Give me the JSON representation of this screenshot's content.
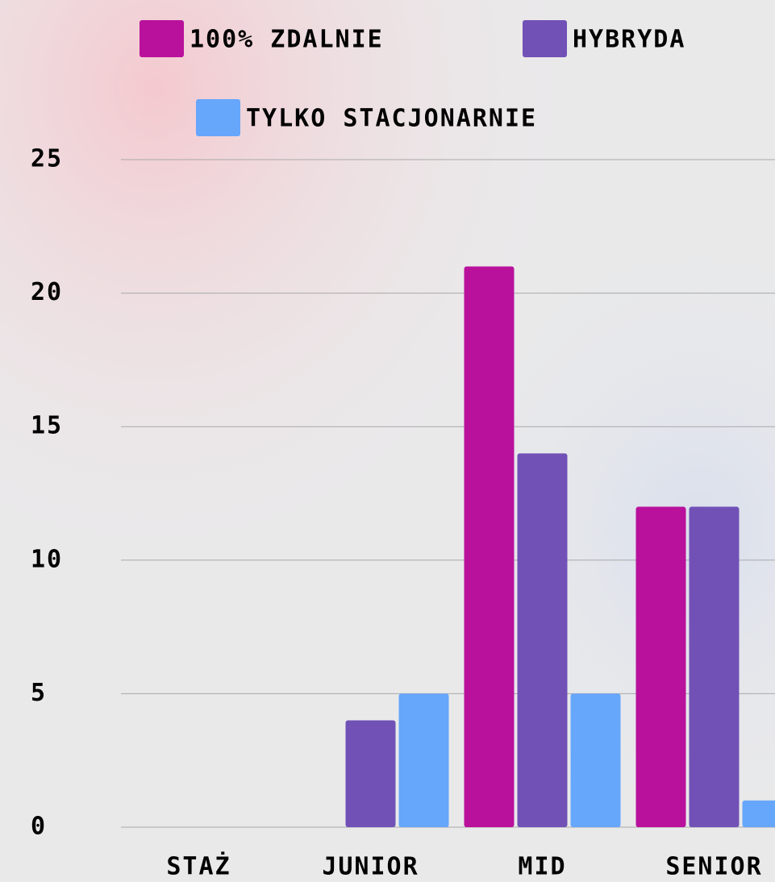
{
  "chart_data": {
    "type": "bar",
    "categories": [
      "Staż",
      "Junior",
      "Mid",
      "Senior"
    ],
    "series": [
      {
        "name": "100% zdalnie",
        "color": "#b9119c",
        "values": [
          0,
          0,
          21,
          12
        ]
      },
      {
        "name": "Hybryda",
        "color": "#7151b6",
        "values": [
          0,
          4,
          14,
          12
        ]
      },
      {
        "name": "Tylko stacjonarnie",
        "color": "#66a6fb",
        "values": [
          0,
          5,
          5,
          1
        ]
      }
    ],
    "ylim": [
      0,
      25
    ],
    "yticks": [
      0,
      5,
      10,
      15,
      20,
      25
    ],
    "grid": true,
    "legend": "top"
  }
}
